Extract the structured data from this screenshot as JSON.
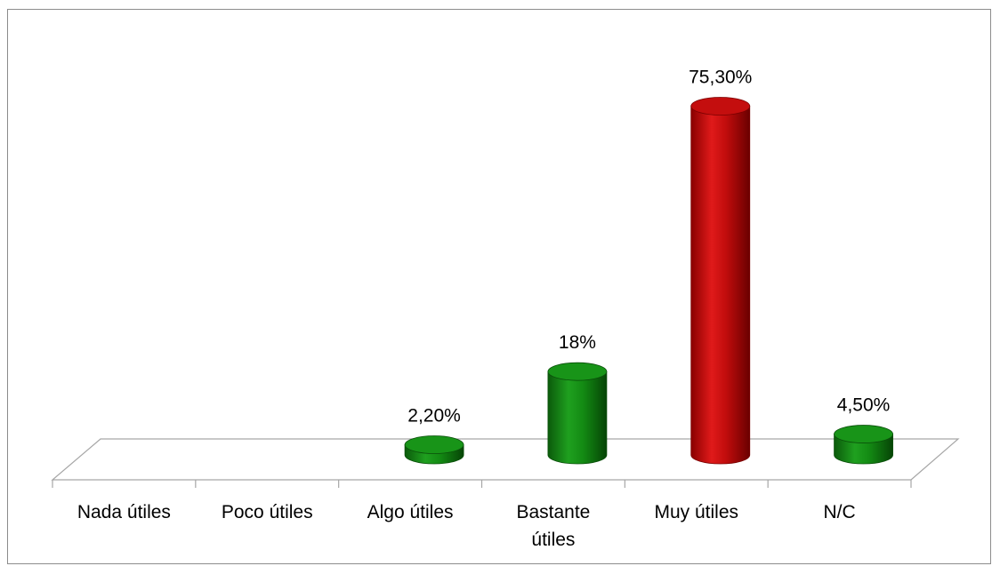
{
  "chart_data": {
    "type": "bar",
    "categories": [
      "Nada útiles",
      "Poco útiles",
      "Algo útiles",
      "Bastante útiles",
      "Muy útiles",
      "N/C"
    ],
    "category_lines": [
      [
        "Nada útiles"
      ],
      [
        "Poco útiles"
      ],
      [
        "Algo útiles"
      ],
      [
        "Bastante",
        "útiles"
      ],
      [
        "Muy útiles"
      ],
      [
        "N/C"
      ]
    ],
    "values": [
      0,
      0,
      2.2,
      18,
      75.3,
      4.5
    ],
    "value_labels": [
      "",
      "",
      "2,20%",
      "18%",
      "75,30%",
      "4,50%"
    ],
    "bar_colors": [
      "#1e9a1e",
      "#1e9a1e",
      "#1e9a1e",
      "#1e9a1e",
      "#cc1111",
      "#1e9a1e"
    ],
    "bar_style": "3d-cylinder",
    "title": "",
    "xlabel": "",
    "ylabel": "",
    "ylim": [
      0,
      80
    ],
    "grid": false,
    "legend": "none"
  }
}
